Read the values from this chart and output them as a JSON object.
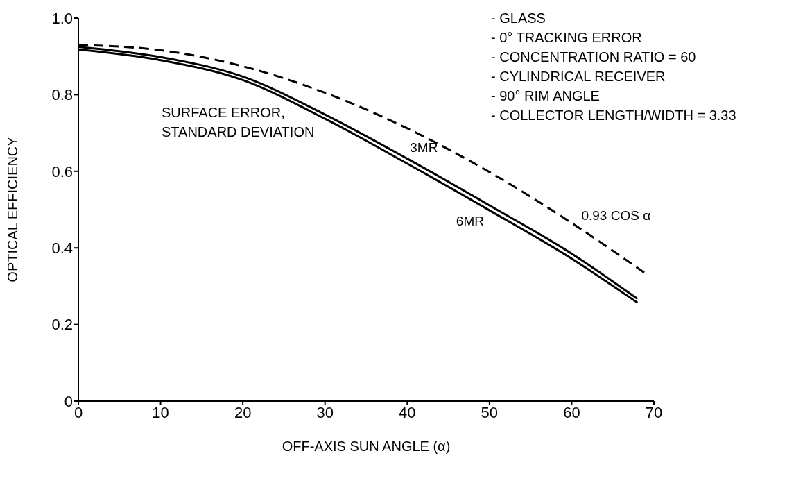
{
  "chart_data": {
    "type": "line",
    "xlabel": "OFF-AXIS SUN ANGLE (α)",
    "ylabel": "OPTICAL EFFICIENCY",
    "xlim": [
      0,
      70
    ],
    "xticks": [
      0,
      10,
      20,
      30,
      40,
      50,
      60,
      70
    ],
    "ylim": [
      0,
      1
    ],
    "yticks": [
      0,
      0.2,
      0.4,
      0.6,
      0.8,
      {
        "value": 1,
        "label": "1.0"
      }
    ],
    "grid": false,
    "legend": false,
    "marker": "none",
    "series": [
      {
        "name": "3MR",
        "color": "#000000",
        "line_style": "solid",
        "x": [
          0,
          10,
          20,
          30,
          40,
          50,
          60,
          68
        ],
        "values": [
          0.925,
          0.898,
          0.847,
          0.748,
          0.633,
          0.511,
          0.385,
          0.267
        ]
      },
      {
        "name": "6MR",
        "color": "#000000",
        "line_style": "solid",
        "x": [
          0,
          10,
          20,
          30,
          40,
          50,
          60,
          68
        ],
        "values": [
          0.918,
          0.89,
          0.838,
          0.737,
          0.62,
          0.498,
          0.372,
          0.257
        ]
      },
      {
        "name": "0.93 COS α",
        "color": "#000000",
        "line_style": "dashed",
        "x": [
          0,
          10,
          20,
          30,
          40,
          50,
          60,
          69
        ],
        "values": [
          0.93,
          0.916,
          0.874,
          0.805,
          0.712,
          0.598,
          0.465,
          0.333
        ]
      }
    ],
    "annotations": [
      "- GLASS",
      "- 0° TRACKING ERROR",
      "- CONCENTRATION RATIO = 60",
      "- CYLINDRICAL RECEIVER",
      "- 90° RIM ANGLE",
      "- COLLECTOR LENGTH/WIDTH = 3.33",
      "SURFACE ERROR,\nSTANDARD DEVIATION"
    ]
  }
}
